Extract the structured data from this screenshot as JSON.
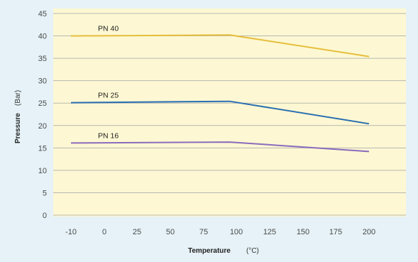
{
  "chart_data": {
    "type": "line",
    "xlabel": "Temperature",
    "xlabel_unit": "(°C)",
    "ylabel": "Pressure",
    "ylabel_unit": "(Bar)",
    "x_ticks": [
      -10,
      0,
      25,
      50,
      75,
      100,
      125,
      150,
      175,
      200
    ],
    "y_ticks": [
      0,
      5,
      10,
      15,
      20,
      25,
      30,
      35,
      40,
      45
    ],
    "ylim": [
      0,
      45
    ],
    "grid": "horizontal",
    "plot_background": "#fdf8d3",
    "frame_background": "#e6f2f7",
    "series": [
      {
        "name": "PN 40",
        "color": "#e6be3c",
        "points": [
          [
            -10,
            40
          ],
          [
            95,
            40.2
          ],
          [
            200,
            35.4
          ]
        ]
      },
      {
        "name": "PN 25",
        "color": "#2b6fb2",
        "points": [
          [
            -10,
            25.1
          ],
          [
            95,
            25.4
          ],
          [
            200,
            20.4
          ]
        ]
      },
      {
        "name": "PN 16",
        "color": "#8a6bbd",
        "points": [
          [
            -10,
            16.1
          ],
          [
            95,
            16.3
          ],
          [
            200,
            14.2
          ]
        ]
      }
    ]
  }
}
